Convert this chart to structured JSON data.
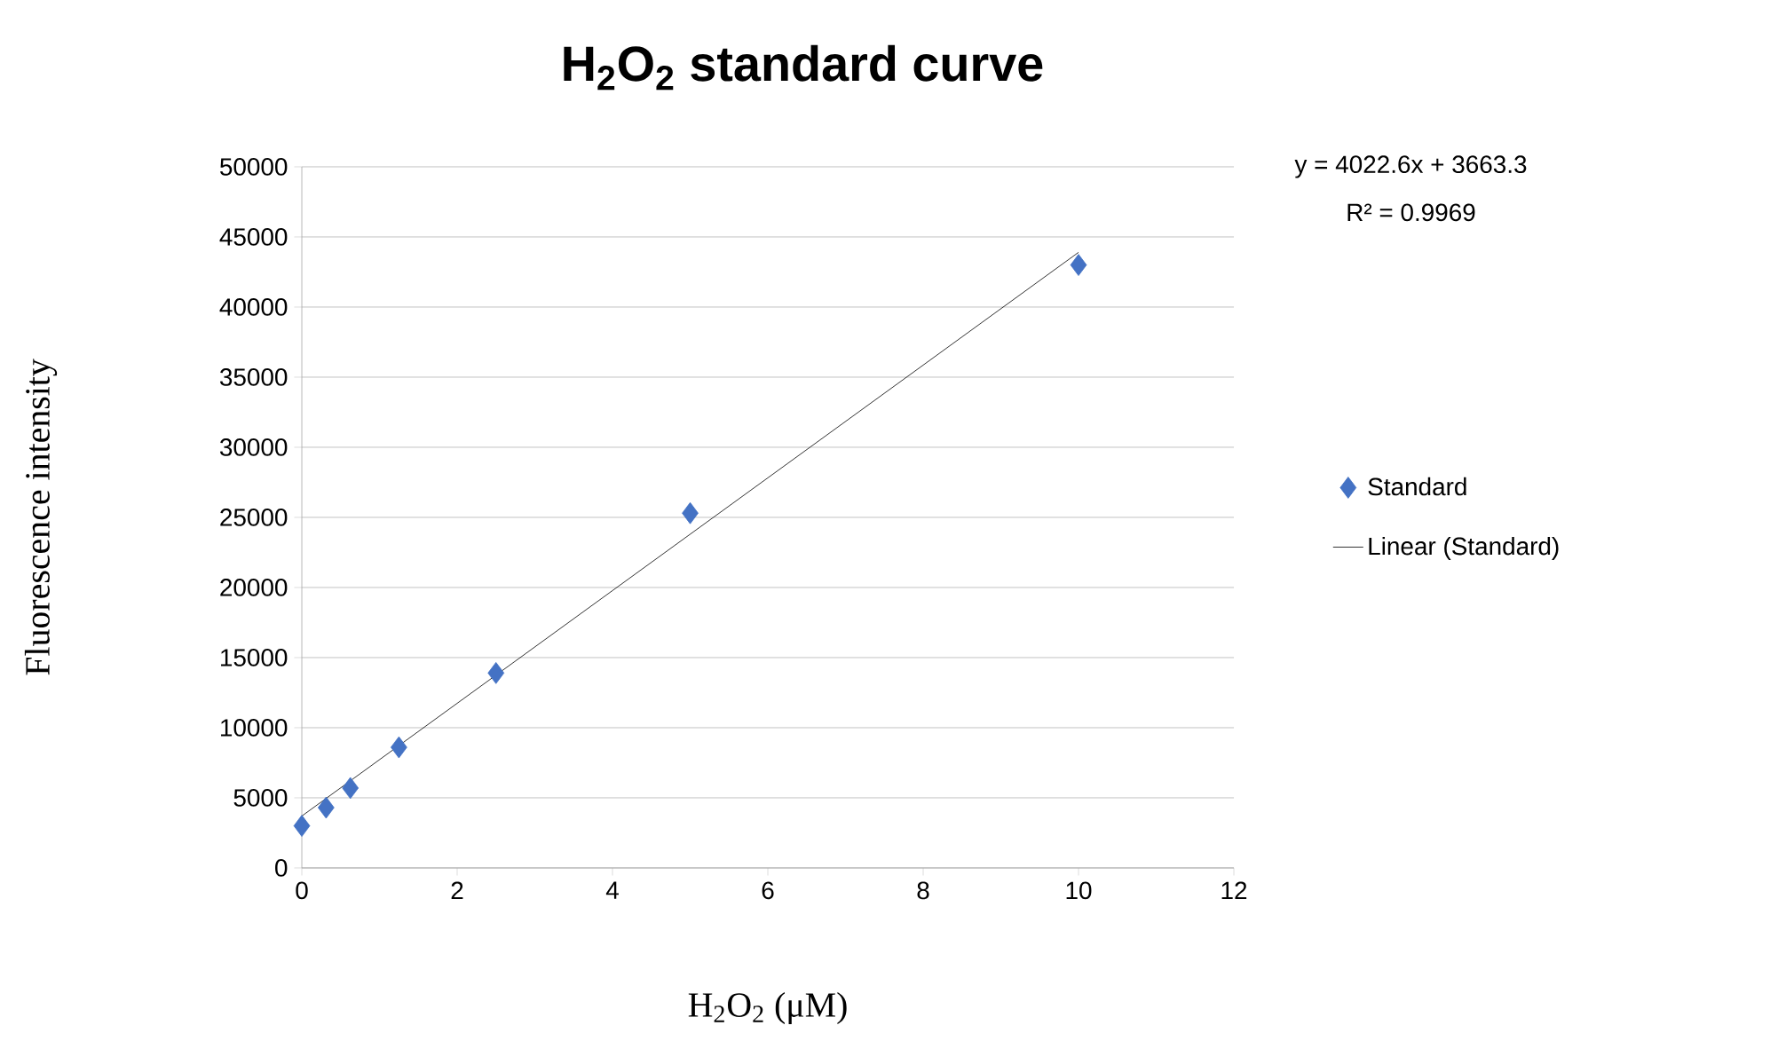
{
  "chart_data": {
    "type": "scatter",
    "title": "H$_{2}$O$_{2}$ standard curve",
    "xlabel": "H$_{2}$O$_{2}$ (μM)",
    "ylabel": "Fluorescence intensity",
    "x": [
      0,
      0.3125,
      0.625,
      1.25,
      2.5,
      5,
      10
    ],
    "series": [
      {
        "name": "Standard",
        "marker": "diamond",
        "color": "#4472c4",
        "values": [
          3000,
          4300,
          5700,
          8600,
          13900,
          25300,
          43000
        ]
      },
      {
        "name": "Linear (Standard)",
        "type": "line",
        "marker": "none",
        "color": "#000000",
        "x": [
          0,
          10
        ],
        "values": [
          3700,
          43900
        ]
      }
    ],
    "annotations": [
      "y = 4022.6x + 3663.3",
      "R² = 0.9969"
    ],
    "xlim": [
      0,
      12
    ],
    "xticks": [
      0,
      2,
      4,
      6,
      8,
      10,
      12
    ],
    "ylim": [
      0,
      50000
    ],
    "yticks": [
      0,
      5000,
      10000,
      15000,
      20000,
      25000,
      30000,
      35000,
      40000,
      45000,
      50000
    ],
    "grid": "y",
    "legend": "right"
  }
}
